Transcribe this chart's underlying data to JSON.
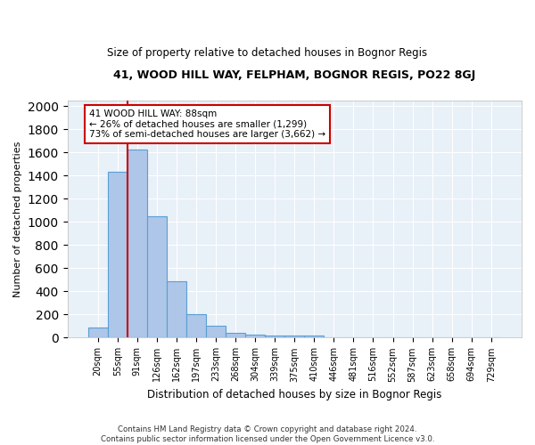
{
  "title1": "41, WOOD HILL WAY, FELPHAM, BOGNOR REGIS, PO22 8GJ",
  "title2": "Size of property relative to detached houses in Bognor Regis",
  "xlabel": "Distribution of detached houses by size in Bognor Regis",
  "ylabel": "Number of detached properties",
  "footnote": "Contains HM Land Registry data © Crown copyright and database right 2024.\nContains public sector information licensed under the Open Government Licence v3.0.",
  "bar_labels": [
    "20sqm",
    "55sqm",
    "91sqm",
    "126sqm",
    "162sqm",
    "197sqm",
    "233sqm",
    "268sqm",
    "304sqm",
    "339sqm",
    "375sqm",
    "410sqm",
    "446sqm",
    "481sqm",
    "516sqm",
    "552sqm",
    "587sqm",
    "623sqm",
    "658sqm",
    "694sqm",
    "729sqm"
  ],
  "bar_values": [
    85,
    1430,
    1620,
    1050,
    490,
    205,
    100,
    42,
    28,
    22,
    18,
    15,
    0,
    0,
    0,
    0,
    0,
    0,
    0,
    0,
    0
  ],
  "bar_color": "#aec6e8",
  "bar_edge_color": "#5a9fd4",
  "bg_color": "#e8f0f8",
  "grid_color": "#ffffff",
  "annotation_text": "41 WOOD HILL WAY: 88sqm\n← 26% of detached houses are smaller (1,299)\n73% of semi-detached houses are larger (3,662) →",
  "vline_x": 1.5,
  "vline_color": "#cc0000",
  "box_color": "#cc0000",
  "ylim": [
    0,
    2050
  ],
  "yticks": [
    0,
    200,
    400,
    600,
    800,
    1000,
    1200,
    1400,
    1600,
    1800,
    2000
  ]
}
